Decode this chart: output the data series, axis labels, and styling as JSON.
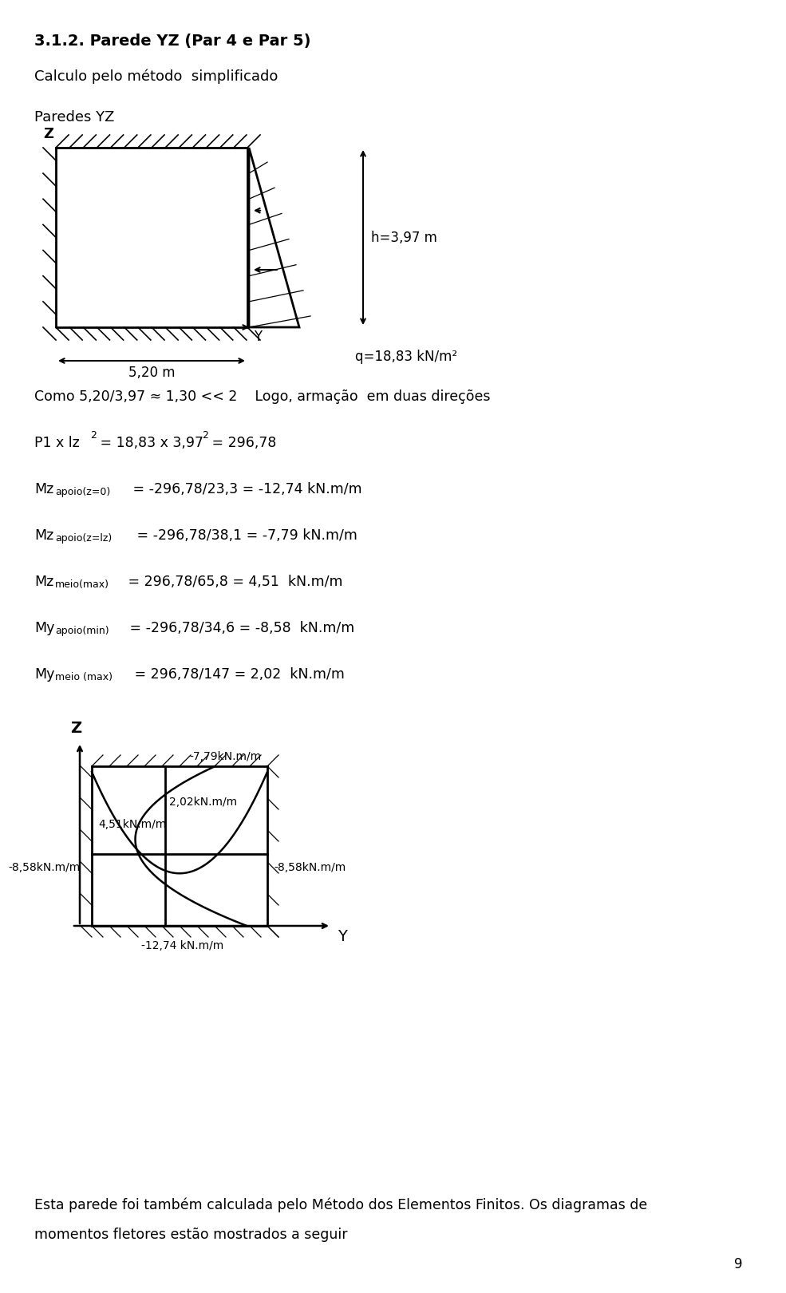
{
  "title": "3.1.2. Parede YZ (Par 4 e Par 5)",
  "subtitle1": "Calculo pelo método  simplificado",
  "subtitle2": "Paredes YZ",
  "h_label": "h=3,97 m",
  "width_label": "5,20 m",
  "q_label": "q=18,83 kN/m²",
  "line1": "Como 5,20/3,97 ≈ 1,30 << 2    Logo, armação  em duas direções",
  "footer1": "Esta parede foi também calculada pelo Método dos Elementos Finitos. Os diagramas de",
  "footer2": "momentos fletores estão mostrados a seguir",
  "page_num": "9",
  "diagram_label_top_right": "-7,79kN.m/m",
  "diagram_label_mid_right": "2,02kN.m/m",
  "diagram_label_mid_left": "4,51kN.m/m",
  "diagram_label_bot_left": "-8,58kN.m/m",
  "diagram_label_bot_right": "-8,58kN.m/m",
  "diagram_label_bottom": "-12,74 kN.m/m",
  "lw_main": 2.0,
  "lw_hatch": 1.2,
  "lw_curve": 1.8
}
